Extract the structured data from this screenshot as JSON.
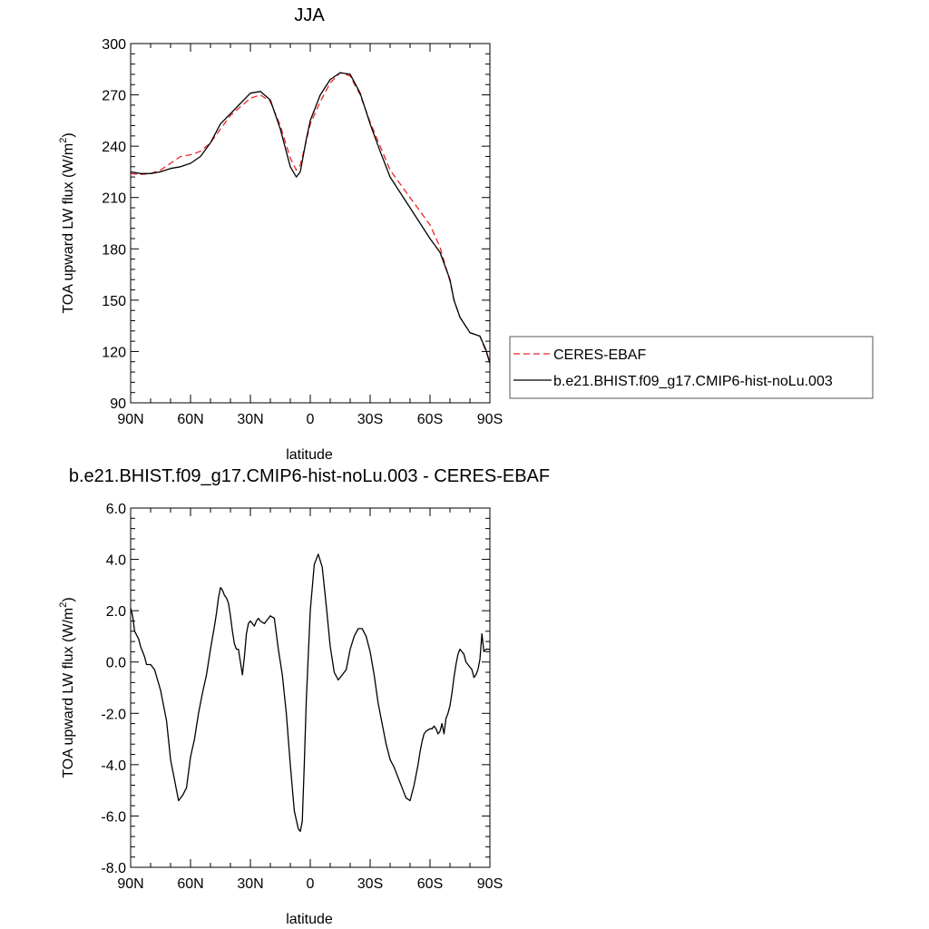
{
  "chart_data": [
    {
      "type": "line",
      "title": "JJA",
      "xlabel": "latitude",
      "ylabel": "TOA upward LW flux (W/m",
      "ylabel_sup": "2",
      "ylabel_close": ")",
      "xlim": [
        90,
        -90
      ],
      "ylim": [
        90,
        300
      ],
      "x_ticks": [
        90,
        60,
        30,
        0,
        -30,
        -60,
        -90
      ],
      "x_tick_labels": [
        "90N",
        "60N",
        "30N",
        "0",
        "30S",
        "60S",
        "90S"
      ],
      "y_ticks": [
        90,
        120,
        150,
        180,
        210,
        240,
        270,
        300
      ],
      "y_tick_labels": [
        "90",
        "120",
        "150",
        "180",
        "210",
        "240",
        "270",
        "300"
      ],
      "legend": {
        "placement": "right",
        "entries": [
          "CERES-EBAF",
          "b.e21.BHIST.f09_g17.CMIP6-hist-noLu.003"
        ]
      },
      "series": [
        {
          "name": "CERES-EBAF",
          "color": "#e8262b",
          "dash": "dashed",
          "x": [
            90,
            85,
            80,
            75,
            70,
            65,
            60,
            55,
            50,
            45,
            40,
            35,
            30,
            25,
            20,
            15,
            10,
            7,
            5,
            2,
            0,
            -5,
            -10,
            -15,
            -20,
            -25,
            -30,
            -35,
            -40,
            -45,
            -50,
            -55,
            -60,
            -65,
            -70,
            -72,
            -75,
            -80,
            -85,
            -88,
            -90
          ],
          "y": [
            224,
            223.5,
            224,
            226,
            230,
            234,
            235,
            237,
            242,
            250,
            258,
            263,
            268,
            270,
            266,
            252,
            233,
            226,
            229,
            243,
            253,
            266,
            277,
            283,
            281,
            270,
            254,
            240,
            226,
            218,
            210,
            202,
            194,
            181,
            161,
            150,
            140,
            131,
            129,
            120,
            114
          ]
        },
        {
          "name": "b.e21.BHIST.f09_g17.CMIP6-hist-noLu.003",
          "color": "#000000",
          "dash": "solid",
          "x": [
            90,
            85,
            80,
            75,
            70,
            65,
            60,
            55,
            50,
            45,
            40,
            35,
            30,
            25,
            20,
            15,
            10,
            7,
            5,
            2,
            0,
            -5,
            -10,
            -15,
            -20,
            -25,
            -30,
            -35,
            -40,
            -45,
            -50,
            -55,
            -60,
            -65,
            -70,
            -72,
            -75,
            -80,
            -85,
            -88,
            -90
          ],
          "y": [
            225,
            224,
            224,
            225,
            227,
            228,
            230,
            234,
            242,
            253,
            259,
            265,
            271,
            272,
            267,
            250,
            228,
            222,
            225,
            244,
            255,
            270,
            279,
            283,
            282,
            271,
            253,
            237,
            222,
            213,
            204,
            195,
            186,
            178,
            162,
            150,
            140,
            131,
            129,
            121,
            113
          ]
        }
      ]
    },
    {
      "type": "line",
      "title": "b.e21.BHIST.f09_g17.CMIP6-hist-noLu.003 - CERES-EBAF",
      "xlabel": "latitude",
      "ylabel": "TOA upward LW flux (W/m",
      "ylabel_sup": "2",
      "ylabel_close": ")",
      "xlim": [
        90,
        -90
      ],
      "ylim": [
        -8,
        6
      ],
      "x_ticks": [
        90,
        60,
        30,
        0,
        -30,
        -60,
        -90
      ],
      "x_tick_labels": [
        "90N",
        "60N",
        "30N",
        "0",
        "30S",
        "60S",
        "90S"
      ],
      "y_ticks": [
        -8,
        -6,
        -4,
        -2,
        0,
        2,
        4,
        6
      ],
      "y_tick_labels": [
        "-8.0",
        "-6.0",
        "-4.0",
        "-2.0",
        "0.0",
        "2.0",
        "4.0",
        "6.0"
      ],
      "series": [
        {
          "color": "#000000",
          "dash": "solid",
          "x": [
            90,
            89,
            88,
            86,
            85,
            84,
            83,
            82,
            80,
            78,
            75,
            72,
            70,
            68,
            66,
            64,
            62,
            60,
            58,
            56,
            54,
            52,
            50,
            48,
            47,
            46,
            45,
            44,
            43,
            42,
            41,
            40,
            39,
            38,
            37,
            36,
            34,
            33,
            32,
            31,
            30,
            29,
            28,
            27,
            26,
            25,
            23,
            21,
            20,
            18,
            16,
            14,
            12,
            10,
            8,
            6,
            5,
            4,
            3,
            2,
            0,
            -2,
            -4,
            -6,
            -8,
            -10,
            -12,
            -14,
            -16,
            -18,
            -20,
            -22,
            -24,
            -26,
            -28,
            -30,
            -32,
            -34,
            -36,
            -38,
            -40,
            -42,
            -44,
            -46,
            -48,
            -50,
            -52,
            -54,
            -55,
            -56,
            -57,
            -58,
            -60,
            -61,
            -62,
            -63,
            -64,
            -65,
            -66,
            -67,
            -68,
            -69,
            -70,
            -71,
            -72,
            -73,
            -74,
            -75,
            -76,
            -77,
            -78,
            -79,
            -80,
            -81,
            -82,
            -83,
            -84,
            -85,
            -86,
            -87,
            -88,
            -89,
            -90
          ],
          "y": [
            2.1,
            1.8,
            1.2,
            0.9,
            0.6,
            0.4,
            0.2,
            -0.1,
            -0.1,
            -0.3,
            -1.1,
            -2.3,
            -3.8,
            -4.6,
            -5.4,
            -5.2,
            -4.9,
            -3.7,
            -3.0,
            -2.0,
            -1.2,
            -0.5,
            0.5,
            1.4,
            1.9,
            2.5,
            2.9,
            2.8,
            2.6,
            2.5,
            2.3,
            1.8,
            1.2,
            0.7,
            0.5,
            0.5,
            -0.5,
            0.2,
            1.1,
            1.5,
            1.6,
            1.5,
            1.4,
            1.6,
            1.7,
            1.6,
            1.5,
            1.7,
            1.8,
            1.7,
            0.5,
            -0.5,
            -2.0,
            -4.0,
            -5.8,
            -6.5,
            -6.6,
            -6.2,
            -4.0,
            -1.5,
            2.0,
            3.8,
            4.2,
            3.7,
            2.2,
            0.6,
            -0.4,
            -0.7,
            -0.5,
            -0.3,
            0.5,
            1.0,
            1.3,
            1.3,
            1.0,
            0.4,
            -0.5,
            -1.6,
            -2.4,
            -3.2,
            -3.8,
            -4.1,
            -4.5,
            -4.9,
            -5.3,
            -5.4,
            -4.8,
            -4.0,
            -3.5,
            -3.1,
            -2.8,
            -2.7,
            -2.6,
            -2.6,
            -2.5,
            -2.6,
            -2.8,
            -2.7,
            -2.4,
            -2.8,
            -2.2,
            -2.0,
            -1.7,
            -1.2,
            -0.6,
            -0.1,
            0.3,
            0.5,
            0.4,
            0.3,
            0.0,
            -0.1,
            -0.2,
            -0.3,
            -0.6,
            -0.5,
            -0.3,
            0.1,
            1.1,
            0.4,
            0.5,
            0.5,
            0.5
          ]
        }
      ]
    }
  ]
}
